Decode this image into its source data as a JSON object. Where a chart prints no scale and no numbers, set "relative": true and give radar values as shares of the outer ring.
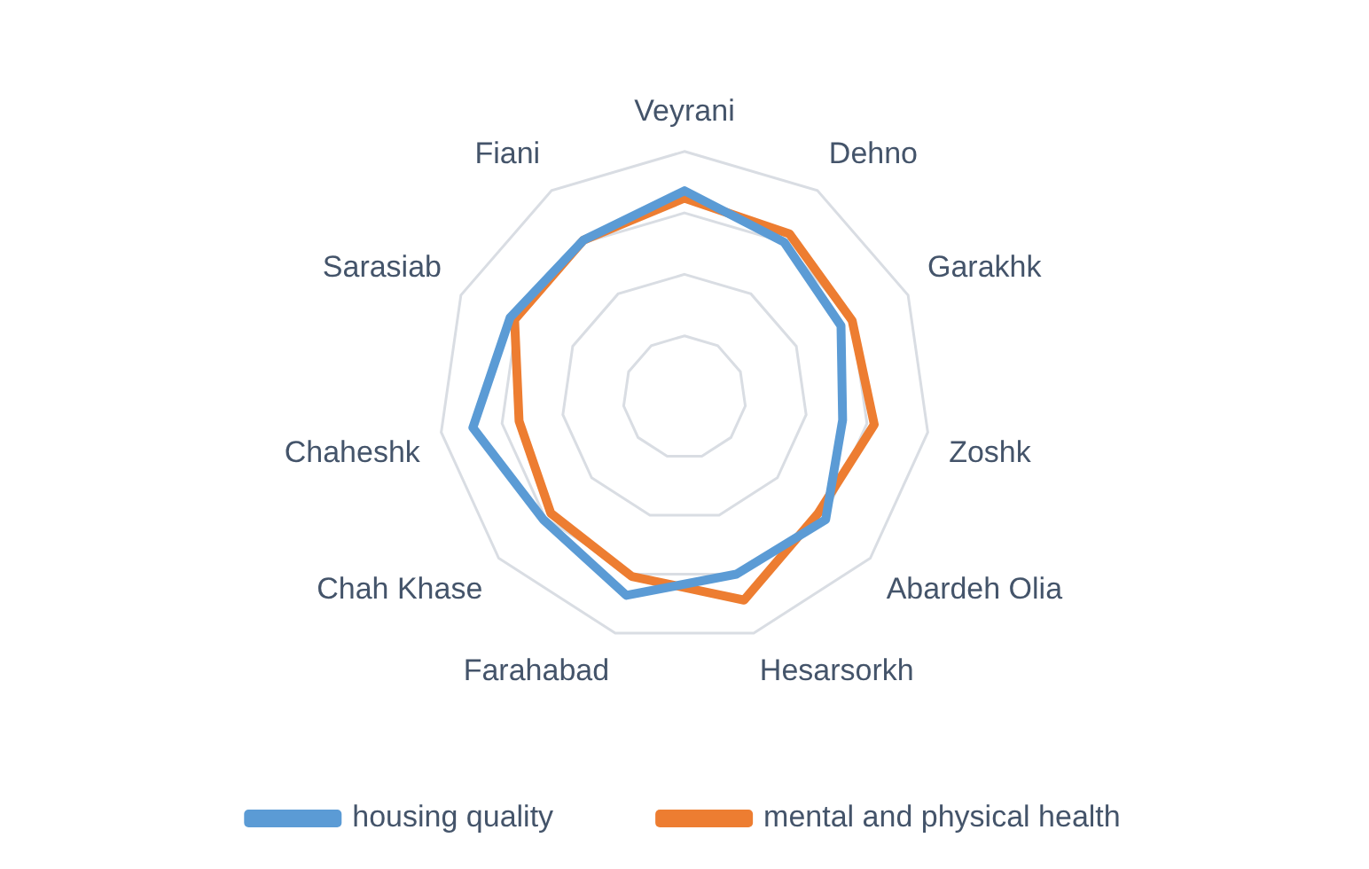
{
  "chart_data": {
    "type": "radar",
    "relative": true,
    "legend": "bottom",
    "categories": [
      "Veyrani",
      "Dehno",
      "Garakhk",
      "Zoshk",
      "Abardeh Olia",
      "Hesarsorkh",
      "Farahabad",
      "Chah Khase",
      "Chaheshk",
      "Sarasiab",
      "Fiani"
    ],
    "series": [
      {
        "name": "housing quality",
        "color": "#5b9bd5",
        "values": [
          0.84,
          0.75,
          0.7,
          0.65,
          0.76,
          0.75,
          0.84,
          0.76,
          0.87,
          0.78,
          0.76
        ]
      },
      {
        "name": "mental and physical health",
        "color": "#ed7d31",
        "values": [
          0.81,
          0.79,
          0.75,
          0.78,
          0.72,
          0.86,
          0.76,
          0.72,
          0.68,
          0.76,
          0.76
        ]
      }
    ]
  }
}
